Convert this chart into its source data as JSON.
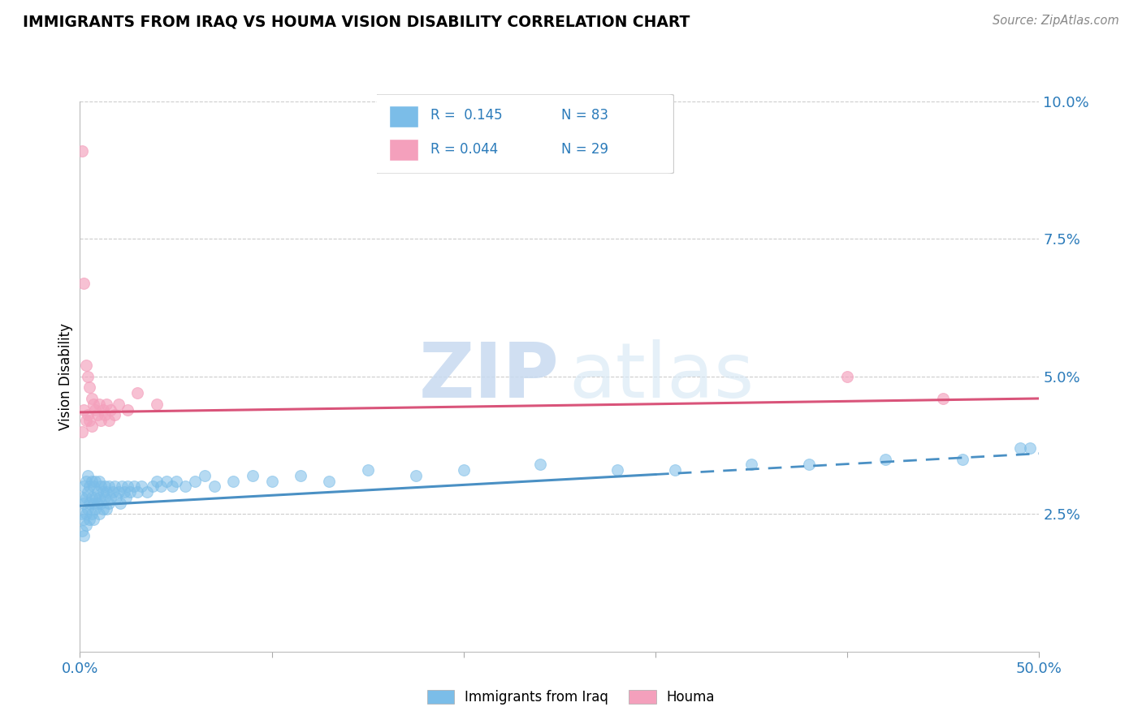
{
  "title": "IMMIGRANTS FROM IRAQ VS HOUMA VISION DISABILITY CORRELATION CHART",
  "source_text": "Source: ZipAtlas.com",
  "ylabel": "Vision Disability",
  "xlim": [
    0.0,
    0.5
  ],
  "ylim": [
    0.0,
    0.1
  ],
  "xticks": [
    0.0,
    0.1,
    0.2,
    0.3,
    0.4,
    0.5
  ],
  "yticks": [
    0.0,
    0.025,
    0.05,
    0.075,
    0.1
  ],
  "ytick_labels": [
    "",
    "2.5%",
    "5.0%",
    "7.5%",
    "10.0%"
  ],
  "xtick_labels": [
    "0.0%",
    "",
    "",
    "",
    "",
    "50.0%"
  ],
  "blue_color": "#7bbde8",
  "pink_color": "#f4a0bc",
  "blue_line_color": "#4a90c4",
  "pink_line_color": "#d9547a",
  "grid_color": "#cccccc",
  "blue_line_x0": 0.0,
  "blue_line_y0": 0.0265,
  "blue_line_x1": 0.5,
  "blue_line_y1": 0.036,
  "blue_line_solid_end": 0.3,
  "pink_line_x0": 0.0,
  "pink_line_y0": 0.0435,
  "pink_line_x1": 0.5,
  "pink_line_y1": 0.046,
  "blue_scatter_x": [
    0.001,
    0.001,
    0.001,
    0.002,
    0.002,
    0.002,
    0.002,
    0.003,
    0.003,
    0.003,
    0.003,
    0.004,
    0.004,
    0.004,
    0.005,
    0.005,
    0.005,
    0.006,
    0.006,
    0.006,
    0.007,
    0.007,
    0.007,
    0.008,
    0.008,
    0.008,
    0.009,
    0.009,
    0.01,
    0.01,
    0.01,
    0.011,
    0.011,
    0.012,
    0.012,
    0.013,
    0.013,
    0.014,
    0.014,
    0.015,
    0.015,
    0.016,
    0.017,
    0.018,
    0.019,
    0.02,
    0.021,
    0.022,
    0.023,
    0.024,
    0.025,
    0.026,
    0.028,
    0.03,
    0.032,
    0.035,
    0.038,
    0.04,
    0.042,
    0.045,
    0.048,
    0.05,
    0.055,
    0.06,
    0.065,
    0.07,
    0.08,
    0.09,
    0.1,
    0.115,
    0.13,
    0.15,
    0.175,
    0.2,
    0.24,
    0.28,
    0.31,
    0.35,
    0.38,
    0.42,
    0.46,
    0.49,
    0.495
  ],
  "blue_scatter_y": [
    0.028,
    0.025,
    0.022,
    0.03,
    0.027,
    0.024,
    0.021,
    0.031,
    0.028,
    0.025,
    0.023,
    0.032,
    0.029,
    0.026,
    0.03,
    0.027,
    0.024,
    0.031,
    0.028,
    0.025,
    0.03,
    0.027,
    0.024,
    0.031,
    0.028,
    0.026,
    0.029,
    0.027,
    0.031,
    0.028,
    0.025,
    0.03,
    0.027,
    0.029,
    0.026,
    0.03,
    0.028,
    0.029,
    0.026,
    0.03,
    0.027,
    0.028,
    0.029,
    0.03,
    0.028,
    0.029,
    0.027,
    0.03,
    0.029,
    0.028,
    0.03,
    0.029,
    0.03,
    0.029,
    0.03,
    0.029,
    0.03,
    0.031,
    0.03,
    0.031,
    0.03,
    0.031,
    0.03,
    0.031,
    0.032,
    0.03,
    0.031,
    0.032,
    0.031,
    0.032,
    0.031,
    0.033,
    0.032,
    0.033,
    0.034,
    0.033,
    0.033,
    0.034,
    0.034,
    0.035,
    0.035,
    0.037,
    0.037
  ],
  "pink_scatter_x": [
    0.001,
    0.001,
    0.002,
    0.002,
    0.003,
    0.003,
    0.004,
    0.004,
    0.005,
    0.005,
    0.006,
    0.006,
    0.007,
    0.008,
    0.009,
    0.01,
    0.011,
    0.012,
    0.013,
    0.014,
    0.015,
    0.016,
    0.018,
    0.02,
    0.025,
    0.03,
    0.04,
    0.4,
    0.45
  ],
  "pink_scatter_y": [
    0.091,
    0.04,
    0.067,
    0.044,
    0.052,
    0.042,
    0.05,
    0.043,
    0.048,
    0.042,
    0.046,
    0.041,
    0.045,
    0.044,
    0.043,
    0.045,
    0.042,
    0.044,
    0.043,
    0.045,
    0.042,
    0.044,
    0.043,
    0.045,
    0.044,
    0.047,
    0.045,
    0.05,
    0.046
  ]
}
